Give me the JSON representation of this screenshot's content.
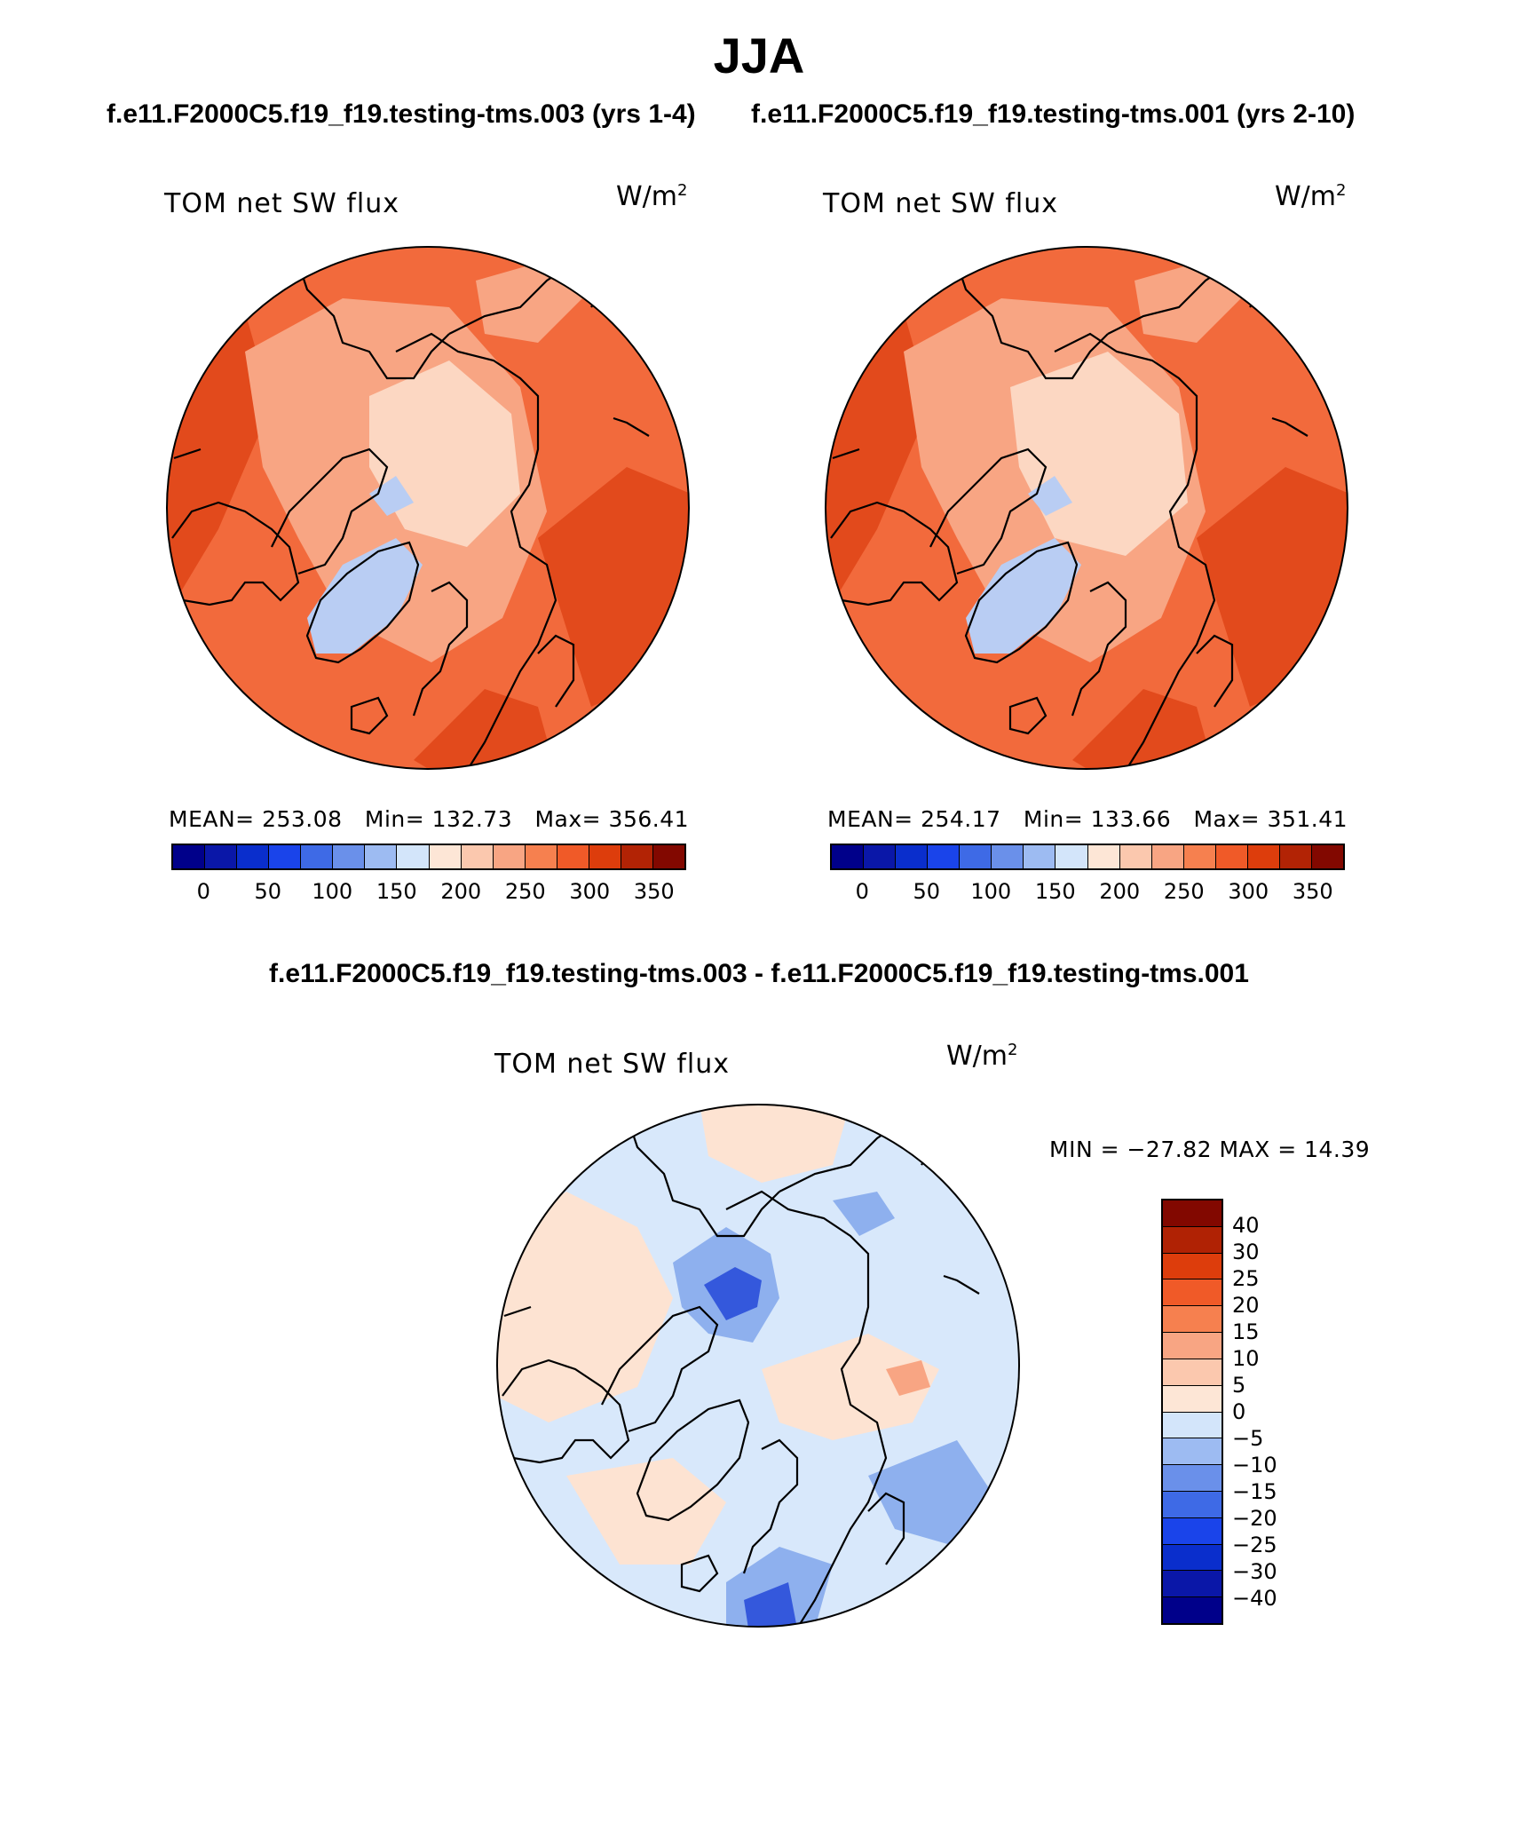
{
  "figure": {
    "season": "JJA",
    "test_title": "f.e11.F2000C5.f19_f19.testing-tms.003 (yrs 1-4)",
    "ctrl_title": "f.e11.F2000C5.f19_f19.testing-tms.001 (yrs 2-10)",
    "diff_title": "f.e11.F2000C5.f19_f19.testing-tms.003 - f.e11.F2000C5.f19_f19.testing-tms.001"
  },
  "panels": {
    "test": {
      "variable": "TOM net SW flux",
      "units_base": "W/m",
      "units_exp": "2",
      "mean_text": "MEAN= 253.08",
      "min_text": "Min= 132.73",
      "max_text": "Max= 356.41"
    },
    "ctrl": {
      "variable": "TOM net SW flux",
      "units_base": "W/m",
      "units_exp": "2",
      "mean_text": "MEAN= 254.17",
      "min_text": "Min= 133.66",
      "max_text": "Max= 351.41"
    },
    "diff": {
      "variable": "TOM net SW flux",
      "units_base": "W/m",
      "units_exp": "2",
      "minmax_text": "MIN = −27.82 MAX =   14.39"
    }
  },
  "colorbars": {
    "abs_colors": [
      "#00008a",
      "#0a17a8",
      "#0a2ecc",
      "#1a44ea",
      "#3e6ae6",
      "#6a90ea",
      "#9dbbf2",
      "#d3e5fa",
      "#fde6d6",
      "#fbc8ae",
      "#f8a583",
      "#f6804f",
      "#f05a28",
      "#dd3d0c",
      "#b22305",
      "#820800"
    ],
    "abs_ticks": [
      "0",
      "50",
      "100",
      "150",
      "200",
      "250",
      "300",
      "350"
    ],
    "diff_colors": [
      "#820800",
      "#b02204",
      "#dd3d0c",
      "#f05a28",
      "#f6804f",
      "#f8a583",
      "#fbc8ae",
      "#fde6d6",
      "#d3e5fa",
      "#9dbbf2",
      "#6a90ea",
      "#3e6ae6",
      "#1a44ea",
      "#0a2ecc",
      "#0a17a8",
      "#00008a"
    ],
    "diff_ticks": [
      "40",
      "30",
      "25",
      "20",
      "15",
      "10",
      "5",
      "0",
      "−5",
      "−10",
      "−15",
      "−20",
      "−25",
      "−30",
      "−40"
    ]
  },
  "palette": {
    "abs_base": "#f26a3c",
    "abs_light": "#f8a583",
    "abs_pale": "#fcd7c2",
    "abs_dark": "#e24a1c",
    "abs_blue": "#b9cdf3",
    "diff_base": "#d8e8fb",
    "diff_pos": "#fde3d2",
    "diff_blue": "#8eb0ee",
    "diff_dblue": "#3458dc"
  }
}
